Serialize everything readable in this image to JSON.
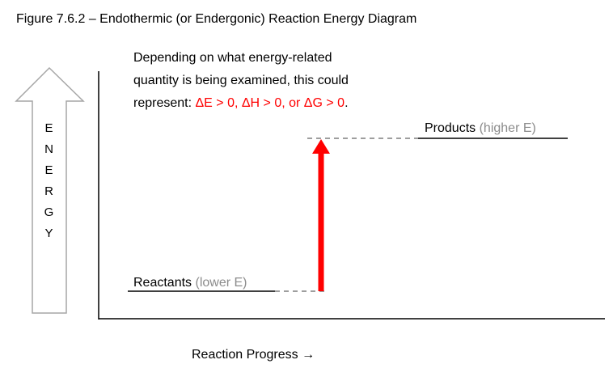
{
  "title": "Figure 7.6.2 – Endothermic (or Endergonic) Reaction Energy Diagram",
  "note": {
    "line1": "Depending on what energy-related",
    "line2": "quantity is being examined, this could",
    "line3_prefix": "represent: ",
    "line3_highlight": "ΔE > 0, ΔH > 0, or ΔG > 0",
    "line3_suffix": "."
  },
  "levels": {
    "reactants": {
      "name": "Reactants",
      "note": "(lower E)"
    },
    "products": {
      "name": "Products",
      "note": "(higher E)"
    }
  },
  "y_label": "ENERGY",
  "x_label": "Reaction Progress →"
}
